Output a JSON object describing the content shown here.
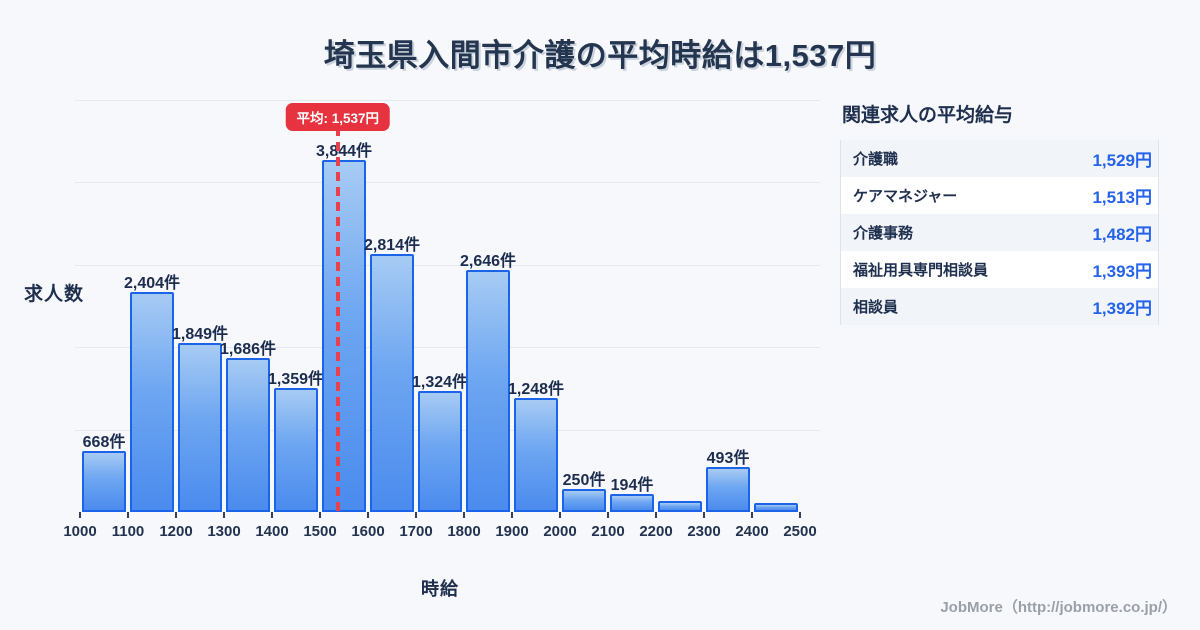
{
  "title": "埼玉県入間市介護の平均時給は1,537円",
  "chart_data": {
    "type": "bar",
    "title": "埼玉県入間市介護の平均時給は1,537円",
    "xlabel": "時給",
    "ylabel": "求人数",
    "x_min": 1000,
    "x_max": 2500,
    "bin_width": 100,
    "x_ticks": [
      1000,
      1100,
      1200,
      1300,
      1400,
      1500,
      1600,
      1700,
      1800,
      1900,
      2000,
      2100,
      2200,
      2300,
      2400,
      2500
    ],
    "categories": [
      "1000-1100",
      "1100-1200",
      "1200-1300",
      "1300-1400",
      "1400-1500",
      "1500-1600",
      "1600-1700",
      "1700-1800",
      "1800-1900",
      "1900-2000",
      "2000-2100",
      "2100-2200",
      "2200-2300",
      "2300-2400",
      "2400-2500"
    ],
    "values": [
      668,
      2404,
      1849,
      1686,
      1359,
      3844,
      2814,
      1324,
      2646,
      1248,
      250,
      194,
      120,
      493,
      95
    ],
    "bar_labels": [
      "668件",
      "2,404件",
      "1,849件",
      "1,686件",
      "1,359件",
      "3,844件",
      "2,814件",
      "1,324件",
      "2,646件",
      "1,248件",
      "250件",
      "194件",
      "",
      "493件",
      ""
    ],
    "mean": 1537,
    "mean_label": "平均: 1,537円",
    "ylim": [
      0,
      4500
    ],
    "gridline_step": 900,
    "grid": true,
    "legend": false
  },
  "panel": {
    "title": "関連求人の平均給与",
    "rows": [
      {
        "label": "介護職",
        "value": "1,529円"
      },
      {
        "label": "ケアマネジャー",
        "value": "1,513円"
      },
      {
        "label": "介護事務",
        "value": "1,482円"
      },
      {
        "label": "福祉用具専門相談員",
        "value": "1,393円"
      },
      {
        "label": "相談員",
        "value": "1,392円"
      }
    ]
  },
  "footer": {
    "credit": "JobMore（http://jobmore.co.jp/）"
  },
  "colors": {
    "background": "#f7f8fb",
    "bar_fill_top": "#a7cbf4",
    "bar_fill_bottom": "#4b8bee",
    "bar_border": "#1b64e8",
    "mean_red": "#e6333f",
    "navy_text": "#1e2f4e",
    "value_blue": "#2563eb",
    "grid": "#e4e8f0",
    "row_stripe": "#f1f4f9"
  }
}
